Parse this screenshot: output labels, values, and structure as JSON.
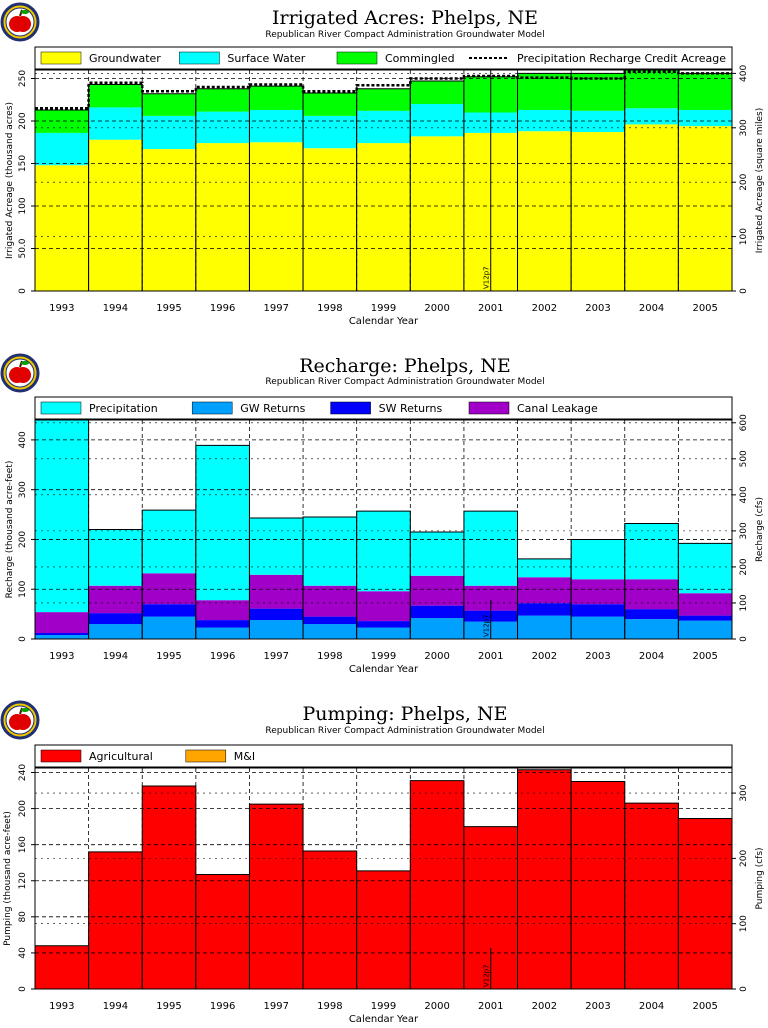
{
  "logo": {
    "icon": "apple-icon"
  },
  "colors": {
    "groundwater": "#ffff00",
    "surface_water": "#00ffff",
    "commingled": "#00ff00",
    "precipitation": "#00ffff",
    "gw_returns": "#00a0ff",
    "sw_returns": "#0000ff",
    "canal_leakage": "#a000c8",
    "agricultural": "#ff0000",
    "mi": "#ffa500"
  },
  "chart_data": [
    {
      "type": "bar",
      "title": "Irrigated  Acres:  Phelps,  NE",
      "subtitle": "Republican  River  Compact  Administration  Groundwater  Model",
      "xlabel": "Calendar  Year",
      "ylabel": "Irrigated  Acreage  (thousand  acres)",
      "ylabel_right": "Irrigated  Acreage  (square  miles)",
      "marker": "V12p7",
      "categories": [
        "1993",
        "1994",
        "1995",
        "1996",
        "1997",
        "1998",
        "1999",
        "2000",
        "2001",
        "2002",
        "2003",
        "2004",
        "2005"
      ],
      "ylim": [
        0,
        260
      ],
      "yticks": [
        "0",
        "50.0",
        "100",
        "150",
        "200",
        "250"
      ],
      "ylim_right": [
        0,
        406.25
      ],
      "yticks_right": [
        "0",
        "100",
        "200",
        "300",
        "400"
      ],
      "stacked": true,
      "series": [
        {
          "name": "Groundwater",
          "values": [
            148,
            178,
            167,
            174,
            175,
            168,
            174,
            182,
            186,
            188,
            187,
            196,
            194
          ]
        },
        {
          "name": "Surface  Water",
          "values": [
            38,
            38,
            39,
            37,
            38,
            38,
            38,
            38,
            24,
            25,
            25,
            19,
            19
          ]
        },
        {
          "name": "Commingled",
          "values": [
            27,
            27,
            26,
            27,
            28,
            27,
            26,
            27,
            42,
            43,
            44,
            45,
            43
          ]
        }
      ],
      "line_series": {
        "name": "Precipitation  Recharge  Credit  Acreage",
        "values": [
          215,
          245,
          235,
          240,
          243,
          235,
          242,
          250,
          253,
          251,
          250,
          258,
          256
        ]
      },
      "grid": true,
      "legend": "top"
    },
    {
      "type": "bar",
      "title": "Recharge:  Phelps,  NE",
      "subtitle": "Republican  River  Compact  Administration  Groundwater  Model",
      "xlabel": "Calendar  Year",
      "ylabel": "Recharge  (thousand  acre-feet)",
      "ylabel_right": "Recharge  (cfs)",
      "marker": "V12p7",
      "categories": [
        "1993",
        "1994",
        "1995",
        "1996",
        "1997",
        "1998",
        "1999",
        "2000",
        "2001",
        "2002",
        "2003",
        "2004",
        "2005"
      ],
      "ylim": [
        0,
        440
      ],
      "yticks": [
        "0",
        "100",
        "200",
        "300",
        "400"
      ],
      "ylim_right": [
        0,
        607.7
      ],
      "yticks_right": [
        "0",
        "100",
        "200",
        "300",
        "400",
        "500",
        "600"
      ],
      "stacked": true,
      "series": [
        {
          "name": "GW  Returns",
          "values": [
            8,
            30,
            45,
            23,
            38,
            30,
            23,
            42,
            35,
            47,
            45,
            40,
            37
          ]
        },
        {
          "name": "SW  Returns",
          "values": [
            4,
            22,
            25,
            15,
            23,
            15,
            13,
            25,
            22,
            25,
            25,
            20,
            10
          ]
        },
        {
          "name": "Canal  Leakage",
          "values": [
            42,
            55,
            62,
            40,
            68,
            62,
            60,
            60,
            50,
            52,
            50,
            60,
            45
          ]
        },
        {
          "name": "Precipitation",
          "values": [
            386,
            113,
            127,
            311,
            114,
            138,
            161,
            88,
            150,
            37,
            80,
            112,
            100
          ]
        }
      ],
      "grid": true,
      "legend": "top"
    },
    {
      "type": "bar",
      "title": "Pumping:  Phelps,  NE",
      "subtitle": "Republican  River  Compact  Administration  Groundwater  Model",
      "xlabel": "Calendar  Year",
      "ylabel": "Pumping  (thousand  acre-feet)",
      "ylabel_right": "Pumping  (cfs)",
      "marker": "V12p7",
      "categories": [
        "1993",
        "1994",
        "1995",
        "1996",
        "1997",
        "1998",
        "1999",
        "2000",
        "2001",
        "2002",
        "2003",
        "2004",
        "2005"
      ],
      "ylim": [
        0,
        245
      ],
      "yticks": [
        "0",
        "40",
        "80",
        "120",
        "160",
        "200",
        "240"
      ],
      "ylim_right": [
        0,
        338.4
      ],
      "yticks_right": [
        "0",
        "100",
        "200",
        "300"
      ],
      "stacked": true,
      "series": [
        {
          "name": "Agricultural",
          "values": [
            48,
            152,
            225,
            127,
            205,
            153,
            131,
            231,
            180,
            243,
            230,
            206,
            189
          ]
        },
        {
          "name": "M&I",
          "values": [
            0,
            0,
            0,
            0,
            0,
            0,
            0,
            0,
            0,
            0,
            0,
            0,
            0
          ]
        }
      ],
      "grid": true,
      "legend": "top"
    }
  ]
}
